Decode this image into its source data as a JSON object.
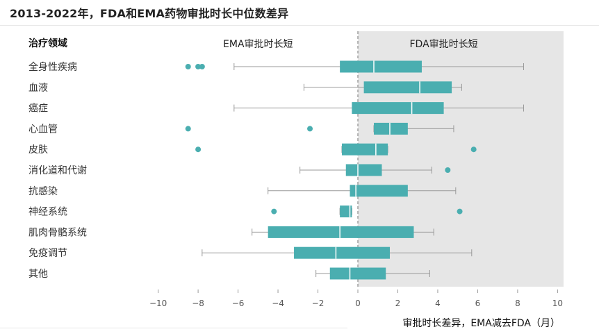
{
  "title": "2013-2022年，FDA和EMA药物审批时长中位数差异",
  "chart_data": {
    "type": "boxplot",
    "orientation": "horizontal",
    "category_header": "治疗领域",
    "region_labels": {
      "left": "EMA审批时长短",
      "right": "FDA审批时长短"
    },
    "xlabel": "审批时长差异，EMA减去FDA（月）",
    "xlim": [
      -10.3,
      10.3
    ],
    "xticks": [
      -10,
      -8,
      -6,
      -4,
      -2,
      0,
      2,
      4,
      6,
      8,
      10
    ],
    "xtick_labels": [
      "−10",
      "−8",
      "−6",
      "−4",
      "−2",
      "0",
      "2",
      "4",
      "6",
      "8",
      "10"
    ],
    "shaded_region": "x > 0",
    "zero_line": "dashed",
    "colors": {
      "box": "#4aaeb0",
      "whisker": "#999999",
      "shade": "#e6e6e6"
    },
    "categories": [
      {
        "name": "全身性疾病",
        "whisker_low": -6.2,
        "q1": -0.9,
        "median": 0.8,
        "q3": 3.2,
        "whisker_high": 8.3,
        "outliers": [
          -8.5,
          -8.0,
          -7.8
        ]
      },
      {
        "name": "血液",
        "whisker_low": -2.7,
        "q1": 0.3,
        "median": 3.1,
        "q3": 4.7,
        "whisker_high": 5.2,
        "outliers": []
      },
      {
        "name": "癌症",
        "whisker_low": -6.2,
        "q1": -0.3,
        "median": 2.7,
        "q3": 4.3,
        "whisker_high": 8.3,
        "outliers": []
      },
      {
        "name": "心血管",
        "whisker_low": 0.8,
        "q1": 0.8,
        "median": 1.6,
        "q3": 2.5,
        "whisker_high": 4.8,
        "outliers": [
          -8.5,
          -2.4
        ]
      },
      {
        "name": "皮肤",
        "whisker_low": -0.8,
        "q1": -0.8,
        "median": 0.9,
        "q3": 1.5,
        "whisker_high": 1.5,
        "outliers": [
          -8.0,
          5.8
        ]
      },
      {
        "name": "消化道和代谢",
        "whisker_low": -2.9,
        "q1": -0.6,
        "median": 0.0,
        "q3": 1.2,
        "whisker_high": 3.7,
        "outliers": [
          4.5
        ]
      },
      {
        "name": "抗感染",
        "whisker_low": -4.5,
        "q1": -0.4,
        "median": -0.1,
        "q3": 2.5,
        "whisker_high": 4.9,
        "outliers": []
      },
      {
        "name": "神经系统",
        "whisker_low": -0.9,
        "q1": -0.9,
        "median": -0.4,
        "q3": -0.3,
        "whisker_high": -0.3,
        "outliers": [
          -4.2,
          5.1
        ]
      },
      {
        "name": "肌肉骨骼系统",
        "whisker_low": -5.3,
        "q1": -4.5,
        "median": -0.9,
        "q3": 2.8,
        "whisker_high": 3.8,
        "outliers": []
      },
      {
        "name": "免疫调节",
        "whisker_low": -7.8,
        "q1": -3.2,
        "median": -1.1,
        "q3": 1.6,
        "whisker_high": 5.7,
        "outliers": []
      },
      {
        "name": "其他",
        "whisker_low": -2.1,
        "q1": -1.4,
        "median": -0.4,
        "q3": 1.4,
        "whisker_high": 3.6,
        "outliers": []
      }
    ]
  }
}
